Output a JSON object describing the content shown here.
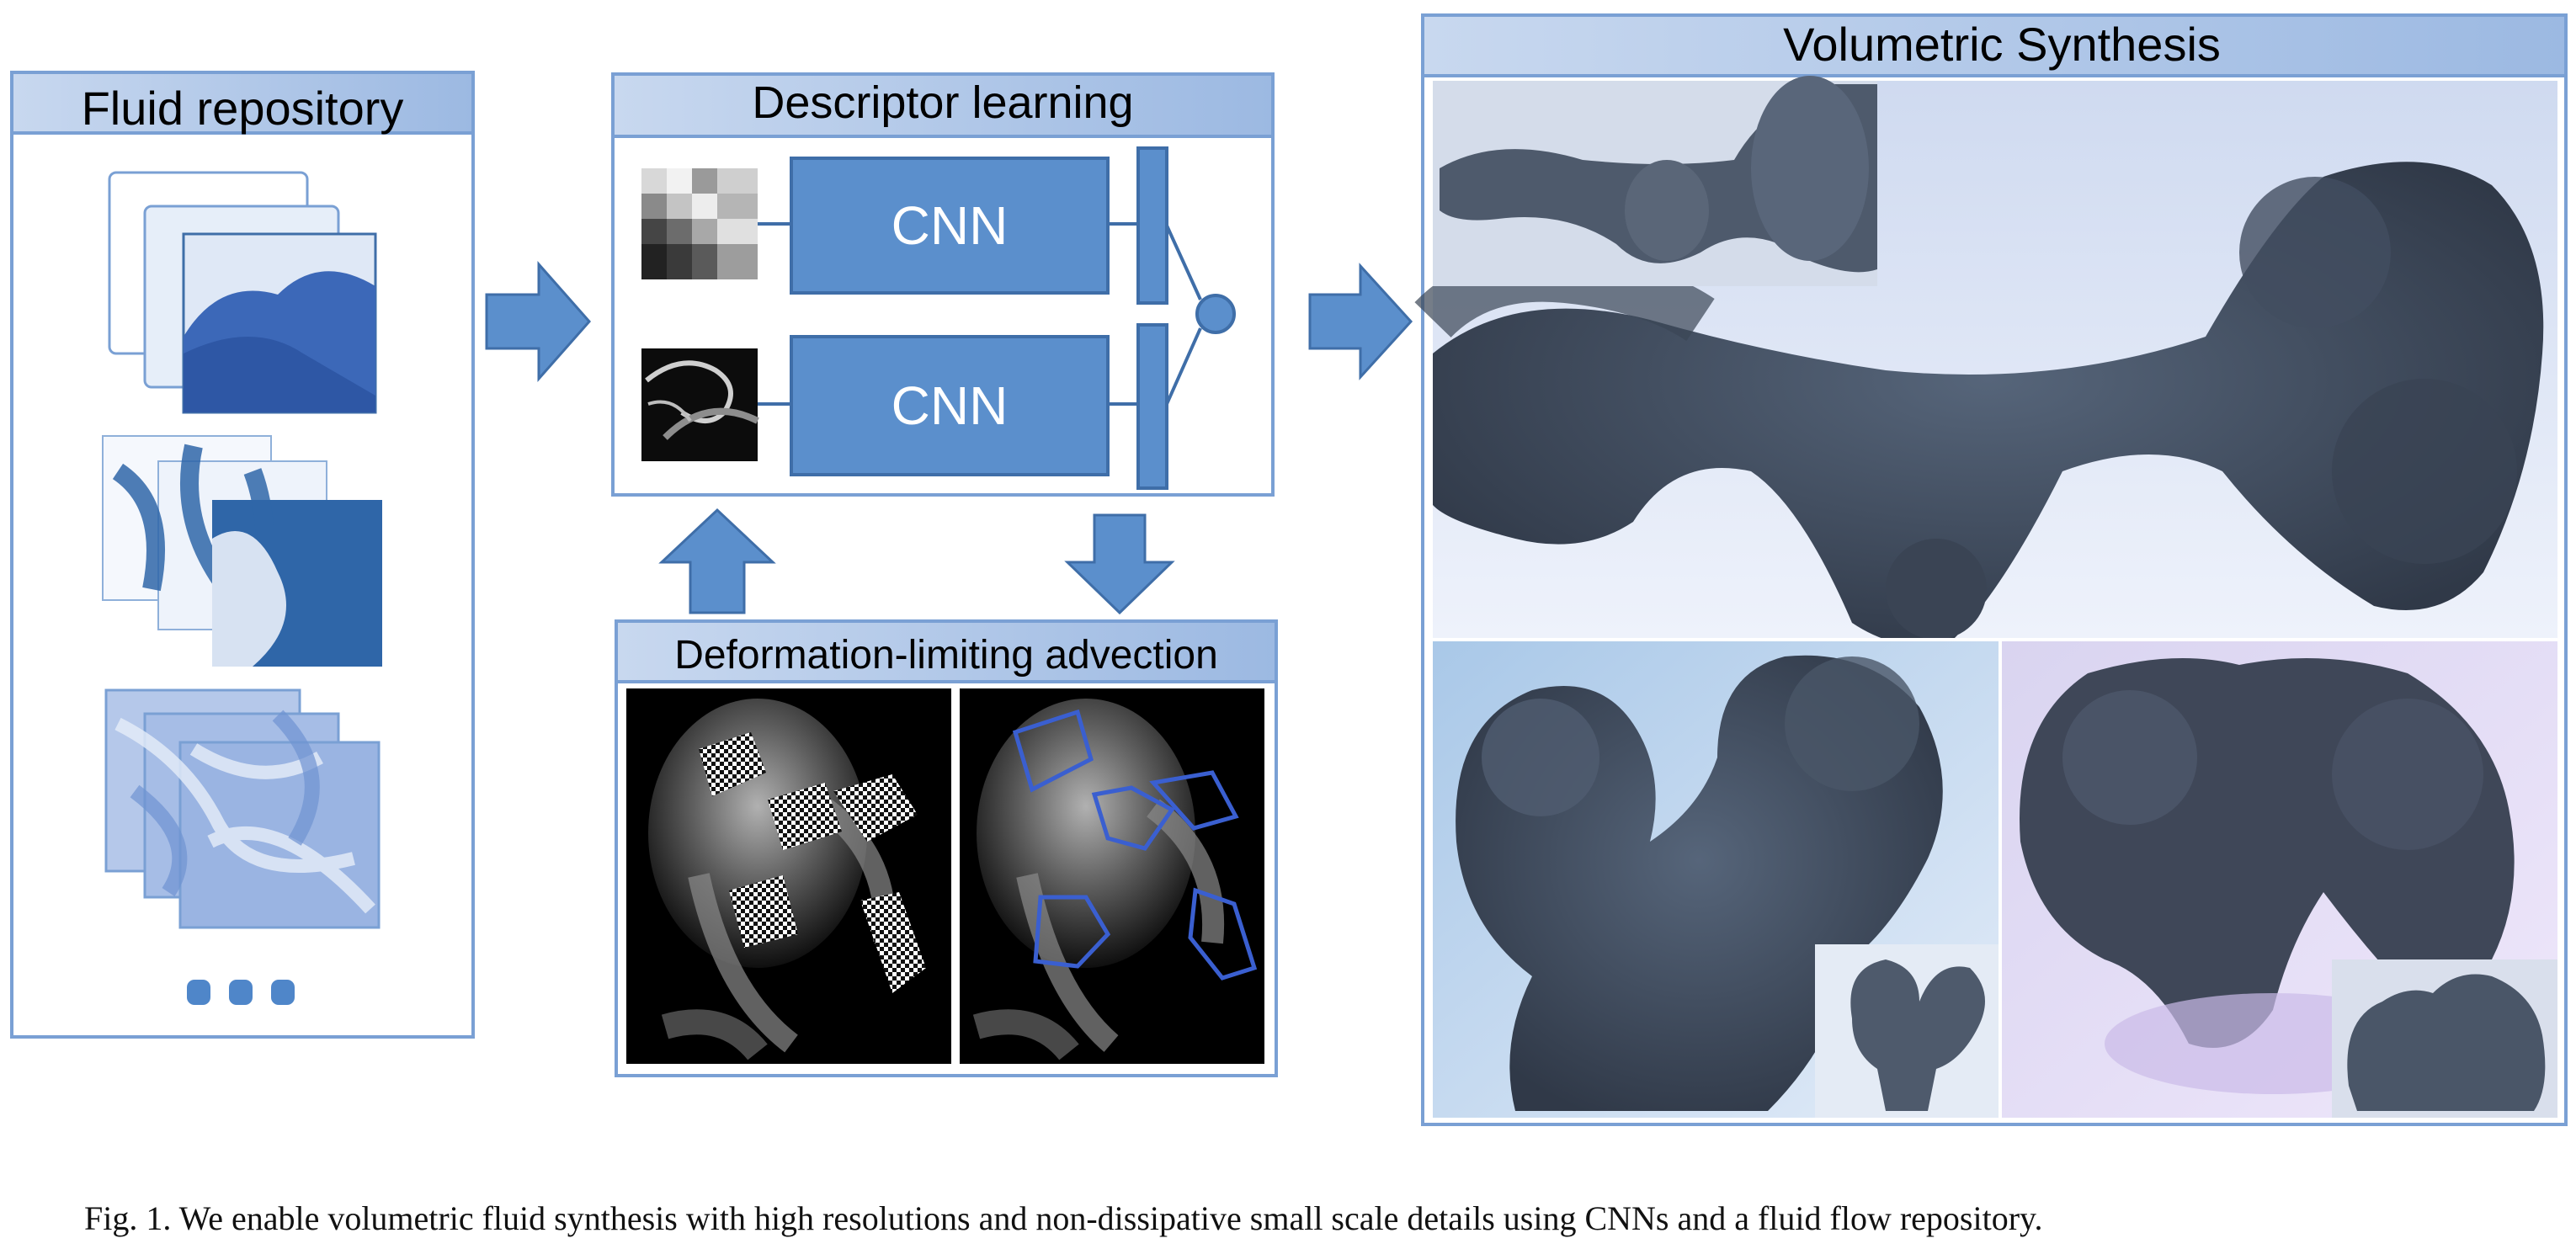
{
  "panels": {
    "repository": {
      "title": "Fluid repository"
    },
    "descriptor": {
      "title": "Descriptor learning",
      "cnn_label": "CNN"
    },
    "advection": {
      "title": "Deformation-limiting advection"
    },
    "synthesis": {
      "title": "Volumetric Synthesis"
    }
  },
  "caption": "Fig. 1.  We enable volumetric fluid synthesis with high resolutions and non-dissipative small scale details using CNNs and a fluid flow repository.",
  "colors": {
    "border": "#7aa0d4",
    "box_fill": "#5b8fcc",
    "box_stroke": "#3f6ea8",
    "smoke": "#3a4656",
    "dark_bg": "#000000"
  }
}
